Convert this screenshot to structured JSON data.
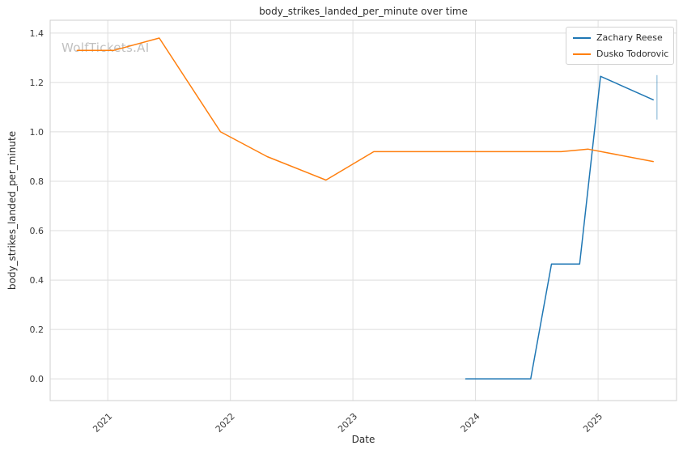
{
  "watermark": "WolfTickets.AI",
  "chart_data": {
    "type": "line",
    "title": "body_strikes_landed_per_minute over time",
    "xlabel": "Date",
    "ylabel": "body_strikes_landed_per_minute",
    "xlim": [
      2020.53,
      2025.64
    ],
    "ylim": [
      -0.088,
      1.452
    ],
    "xticks": [
      2021,
      2022,
      2023,
      2024,
      2025
    ],
    "xtick_labels": [
      "2021",
      "2022",
      "2023",
      "2024",
      "2025"
    ],
    "yticks": [
      0.0,
      0.2,
      0.4,
      0.6,
      0.8,
      1.0,
      1.2,
      1.4
    ],
    "grid": true,
    "legend_position": "upper right",
    "grid_color": "#dedede",
    "border_color": "#cfcfcf",
    "tick_color": "#3b3b3b",
    "series": [
      {
        "name": "Zachary Reese",
        "color": "#1f77b4",
        "points": [
          [
            2023.92,
            0.0
          ],
          [
            2024.45,
            0.0
          ],
          [
            2024.62,
            0.465
          ],
          [
            2024.85,
            0.465
          ],
          [
            2025.02,
            1.225
          ],
          [
            2025.45,
            1.13
          ]
        ]
      },
      {
        "name": "Dusko Todorovic",
        "color": "#ff7f0e",
        "points": [
          [
            2020.75,
            1.33
          ],
          [
            2021.05,
            1.33
          ],
          [
            2021.42,
            1.38
          ],
          [
            2021.92,
            1.0
          ],
          [
            2022.3,
            0.9
          ],
          [
            2022.78,
            0.805
          ],
          [
            2023.17,
            0.92
          ],
          [
            2024.7,
            0.92
          ],
          [
            2024.92,
            0.93
          ],
          [
            2025.45,
            0.88
          ]
        ]
      }
    ],
    "error_bar": {
      "series": "Zachary Reese",
      "x": 2025.48,
      "y_low": 1.05,
      "y_high": 1.23,
      "color": "#1f77b4",
      "opacity": 0.4
    }
  }
}
